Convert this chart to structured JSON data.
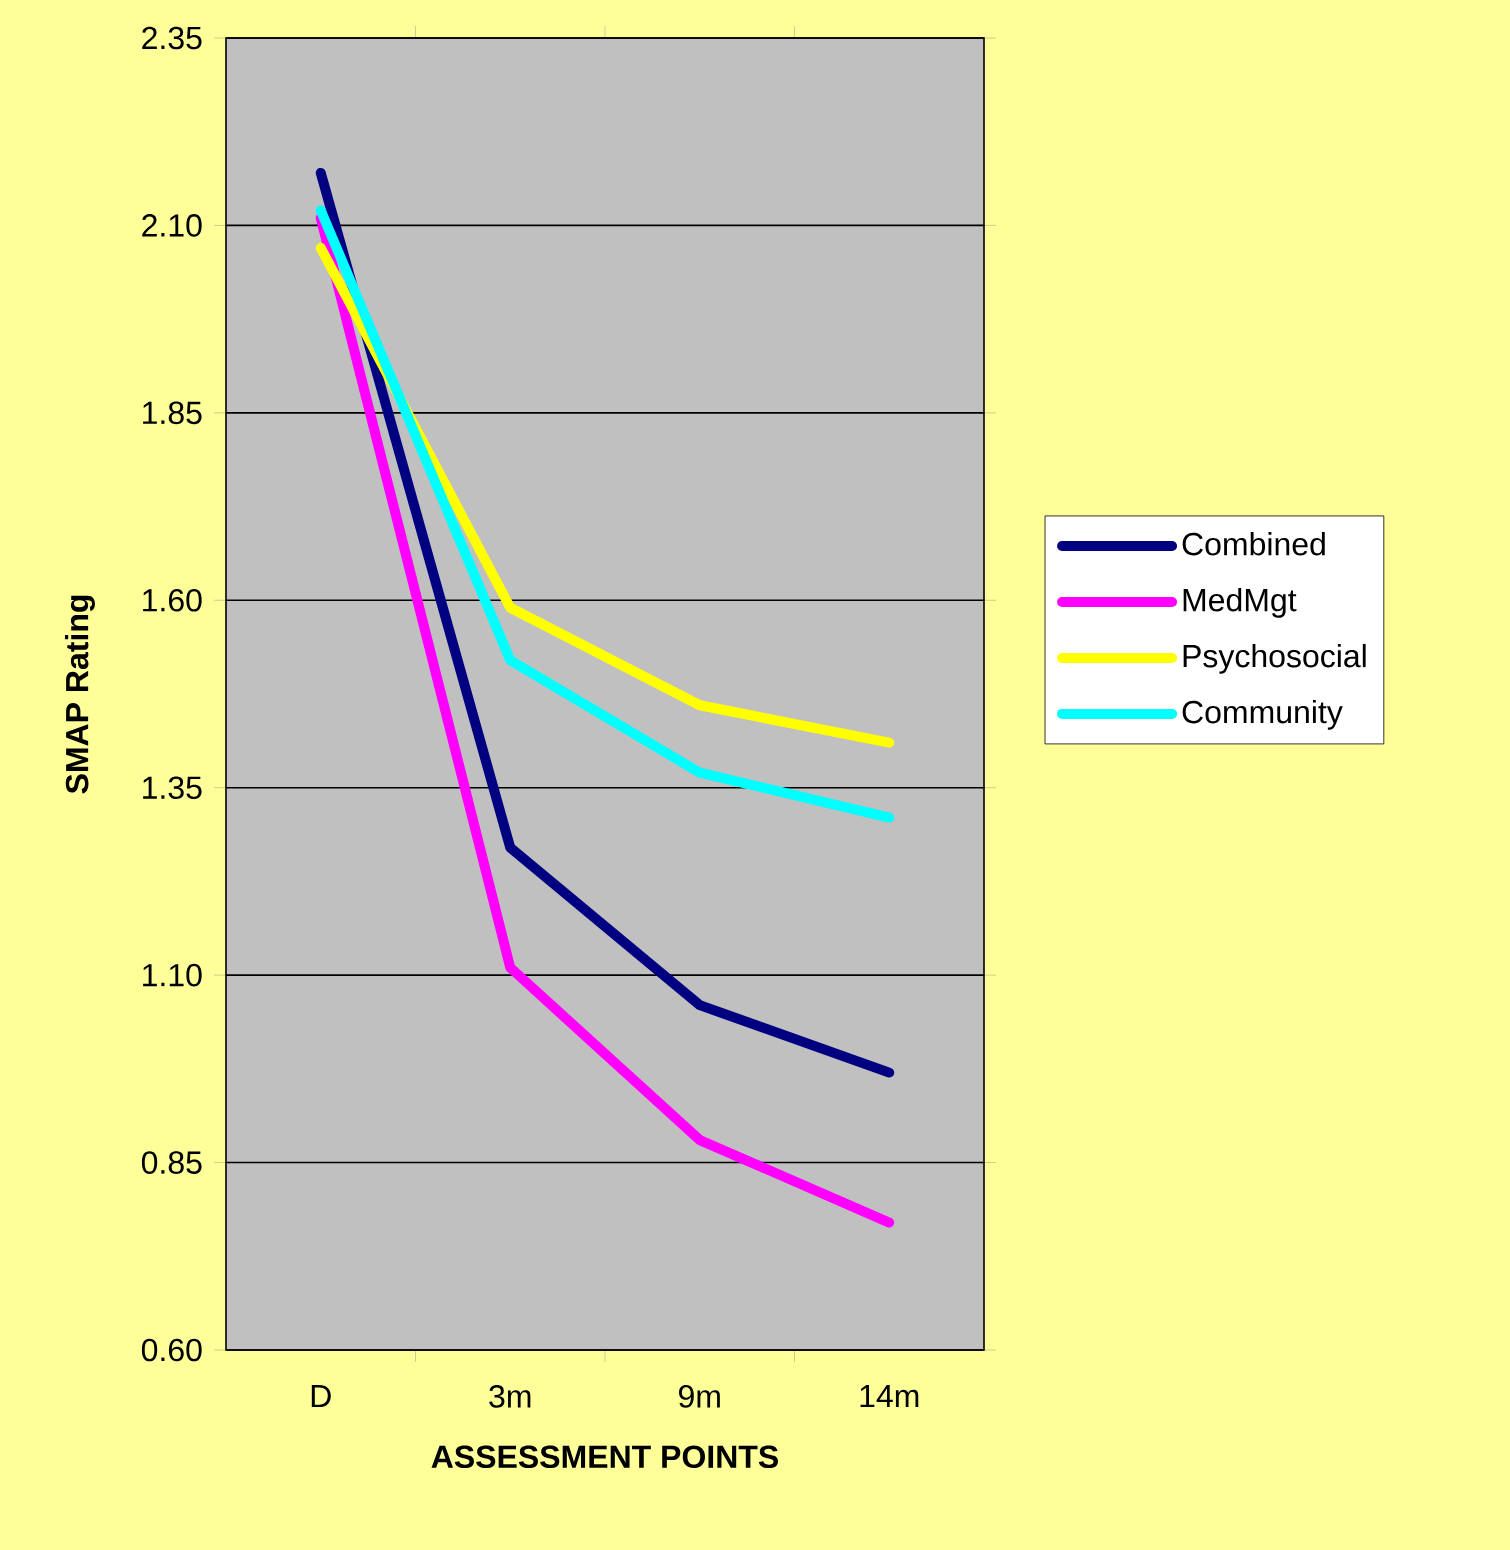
{
  "chart_data": {
    "type": "line",
    "xlabel": "ASSESSMENT POINTS",
    "ylabel": "SMAP Rating",
    "categories": [
      "D",
      "3m",
      "9m",
      "14m"
    ],
    "series": [
      {
        "name": "Combined",
        "color": "#000080",
        "values": [
          2.17,
          1.27,
          1.06,
          0.97
        ]
      },
      {
        "name": "MedMgt",
        "color": "#ff00ff",
        "values": [
          2.11,
          1.11,
          0.88,
          0.77
        ]
      },
      {
        "name": "Psychosocial",
        "color": "#ffff00",
        "values": [
          2.07,
          1.59,
          1.46,
          1.41
        ]
      },
      {
        "name": "Community",
        "color": "#00ffff",
        "values": [
          2.12,
          1.52,
          1.37,
          1.31
        ]
      }
    ],
    "ylim": [
      0.6,
      2.35
    ],
    "yticks": [
      {
        "value": 0.6,
        "label": "0.60"
      },
      {
        "value": 0.85,
        "label": "0.85"
      },
      {
        "value": 1.1,
        "label": "1.10"
      },
      {
        "value": 1.35,
        "label": "1.35"
      },
      {
        "value": 1.6,
        "label": "1.60"
      },
      {
        "value": 1.85,
        "label": "1.85"
      },
      {
        "value": 2.1,
        "label": "2.10"
      },
      {
        "value": 2.35,
        "label": "2.35"
      }
    ],
    "grid": "y",
    "legend": "right",
    "line_style": "solid"
  }
}
